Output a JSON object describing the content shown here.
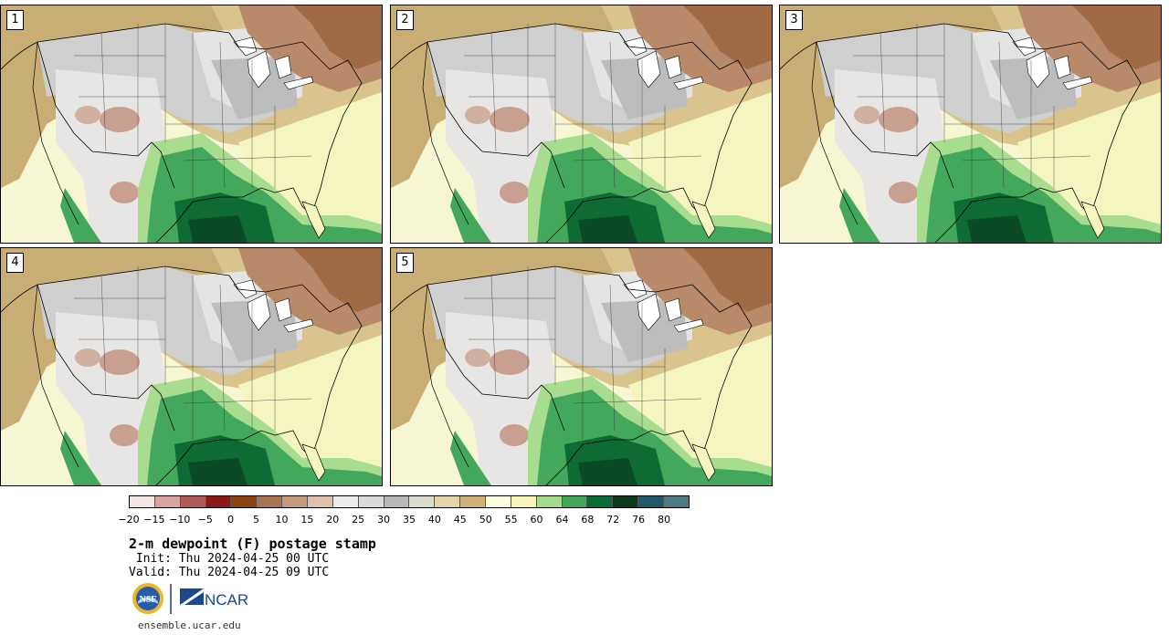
{
  "panels": [
    {
      "label": "1"
    },
    {
      "label": "2"
    },
    {
      "label": "3"
    },
    {
      "label": "4"
    },
    {
      "label": "5"
    }
  ],
  "colorbar": {
    "colors": [
      "#f5e6e6",
      "#d8a3a3",
      "#b05a5a",
      "#8a1a1a",
      "#8b4513",
      "#a97453",
      "#c49a7f",
      "#dcc1ae",
      "#ececec",
      "#dadada",
      "#b8b8b8",
      "#dcdcce",
      "#e3d3a8",
      "#cfb27a",
      "#fdfde0",
      "#f5f5b8",
      "#a6da8c",
      "#41a85b",
      "#0a6b34",
      "#0b3a1f",
      "#1f5a6b",
      "#4e7a80"
    ],
    "ticks": [
      "−20",
      "−15",
      "−10",
      "−5",
      "0",
      "5",
      "10",
      "15",
      "20",
      "25",
      "30",
      "35",
      "40",
      "45",
      "50",
      "55",
      "60",
      "64",
      "68",
      "72",
      "76",
      "80"
    ]
  },
  "title": "2-m dewpoint (F) postage stamp",
  "init": " Init: Thu 2024-04-25 00 UTC",
  "valid": "Valid: Thu 2024-04-25 09 UTC",
  "logos": {
    "nsf": "NSF",
    "ncar": "NCAR"
  },
  "website": "ensemble.ucar.edu"
}
